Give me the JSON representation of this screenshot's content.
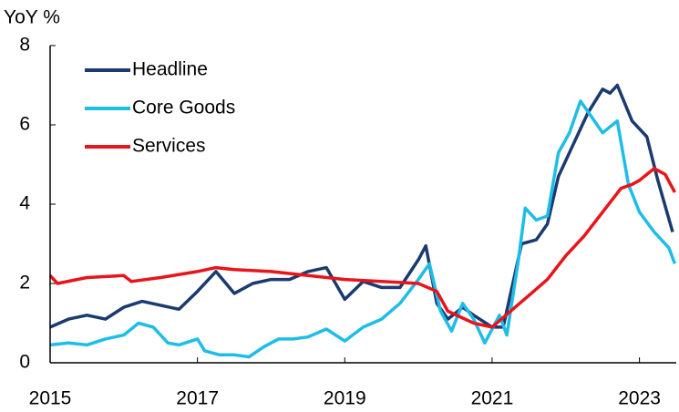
{
  "chart_data": {
    "type": "line",
    "ylabel": "YoY %",
    "xlim": [
      2015,
      2023.5
    ],
    "xticks": [
      2015,
      2017,
      2019,
      2021,
      2023
    ],
    "ylim": [
      0,
      8
    ],
    "yticks": [
      0,
      2,
      4,
      6,
      8
    ],
    "legend": "upper left",
    "grid": false,
    "series": [
      {
        "name": "Headline",
        "color": "#1b3a6f",
        "x": [
          2015.0,
          2015.25,
          2015.5,
          2015.75,
          2016.0,
          2016.25,
          2016.5,
          2016.75,
          2017.0,
          2017.25,
          2017.5,
          2017.75,
          2018.0,
          2018.25,
          2018.5,
          2018.75,
          2019.0,
          2019.25,
          2019.5,
          2019.75,
          2020.0,
          2020.1,
          2020.25,
          2020.4,
          2020.6,
          2020.75,
          2021.0,
          2021.15,
          2021.4,
          2021.6,
          2021.75,
          2021.9,
          2022.1,
          2022.3,
          2022.5,
          2022.6,
          2022.7,
          2022.9,
          2023.1,
          2023.25,
          2023.45
        ],
        "values": [
          0.9,
          1.1,
          1.2,
          1.1,
          1.4,
          1.55,
          1.45,
          1.35,
          1.8,
          2.3,
          1.75,
          2.0,
          2.1,
          2.1,
          2.3,
          2.4,
          1.6,
          2.05,
          1.9,
          1.9,
          2.6,
          2.95,
          1.5,
          1.1,
          1.4,
          1.2,
          0.9,
          0.9,
          3.0,
          3.1,
          3.5,
          4.7,
          5.5,
          6.3,
          6.9,
          6.8,
          7.0,
          6.1,
          5.7,
          4.6,
          3.3
        ]
      },
      {
        "name": "Core Goods",
        "color": "#1ebde8",
        "x": [
          2015.0,
          2015.25,
          2015.5,
          2015.75,
          2016.0,
          2016.2,
          2016.4,
          2016.6,
          2016.75,
          2017.0,
          2017.1,
          2017.3,
          2017.5,
          2017.7,
          2017.9,
          2018.1,
          2018.3,
          2018.5,
          2018.75,
          2019.0,
          2019.25,
          2019.5,
          2019.75,
          2020.0,
          2020.15,
          2020.3,
          2020.45,
          2020.6,
          2020.75,
          2020.9,
          2021.1,
          2021.2,
          2021.35,
          2021.45,
          2021.6,
          2021.75,
          2021.9,
          2022.05,
          2022.2,
          2022.35,
          2022.5,
          2022.7,
          2022.85,
          2023.0,
          2023.2,
          2023.4,
          2023.48
        ],
        "values": [
          0.45,
          0.5,
          0.45,
          0.6,
          0.7,
          1.0,
          0.9,
          0.5,
          0.45,
          0.6,
          0.3,
          0.2,
          0.2,
          0.15,
          0.4,
          0.6,
          0.6,
          0.65,
          0.85,
          0.55,
          0.9,
          1.1,
          1.5,
          2.1,
          2.5,
          1.3,
          0.8,
          1.5,
          1.1,
          0.5,
          1.2,
          0.7,
          2.5,
          3.9,
          3.6,
          3.7,
          5.3,
          5.8,
          6.6,
          6.2,
          5.8,
          6.1,
          4.5,
          3.8,
          3.3,
          2.9,
          2.5
        ]
      },
      {
        "name": "Services",
        "color": "#e8141b",
        "x": [
          2015.0,
          2015.1,
          2015.5,
          2016.0,
          2016.1,
          2016.5,
          2017.0,
          2017.25,
          2017.5,
          2018.0,
          2018.5,
          2019.0,
          2019.5,
          2020.0,
          2020.25,
          2020.4,
          2020.75,
          2021.0,
          2021.25,
          2021.5,
          2021.75,
          2022.0,
          2022.25,
          2022.5,
          2022.75,
          2022.9,
          2023.0,
          2023.2,
          2023.35,
          2023.48
        ],
        "values": [
          2.2,
          2.0,
          2.15,
          2.2,
          2.05,
          2.15,
          2.3,
          2.4,
          2.35,
          2.3,
          2.2,
          2.1,
          2.05,
          2.0,
          1.8,
          1.3,
          1.0,
          0.9,
          1.3,
          1.7,
          2.1,
          2.7,
          3.2,
          3.8,
          4.4,
          4.5,
          4.6,
          4.9,
          4.75,
          4.3
        ]
      }
    ]
  }
}
